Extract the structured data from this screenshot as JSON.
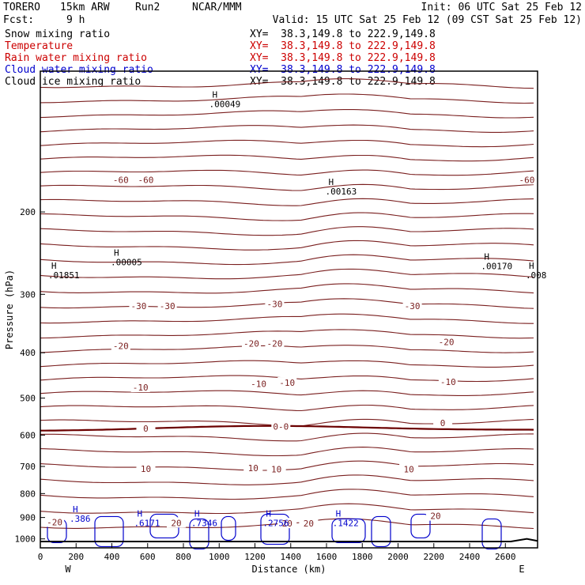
{
  "header": {
    "model": "TORERO",
    "resolution": "15km ARW",
    "run": "Run2",
    "org": "NCAR/MMM",
    "init": "Init: 06 UTC Sat 25 Feb 12",
    "fcst_label": "Fcst:",
    "fcst_value": "9 h",
    "valid": "Valid: 15 UTC Sat 25 Feb 12 (09 CST Sat 25 Feb 12)"
  },
  "fields": [
    {
      "name": "Snow mixing ratio",
      "xy": "XY=  38.3,149.8 to 222.9,149.8",
      "color": "#000000",
      "xy_color": "#000000"
    },
    {
      "name": "Temperature",
      "xy": "XY=  38.3,149.8 to 222.9,149.8",
      "color": "#cc0000",
      "xy_color": "#cc0000"
    },
    {
      "name": "Rain water mixing ratio",
      "xy": "XY=  38.3,149.8 to 222.9,149.8",
      "color": "#cc0000",
      "xy_color": "#cc0000"
    },
    {
      "name": "Cloud water mixing ratio",
      "xy": "XY=  38.3,149.8 to 222.9,149.8",
      "color": "#0000cc",
      "xy_color": "#0000cc"
    },
    {
      "name": "Cloud ice mixing ratio",
      "xy": "XY=  38.3,149.8 to 222.9,149.8",
      "color": "#000000",
      "xy_color": "#000000"
    }
  ],
  "chart_data": {
    "type": "contour cross-section",
    "xlabel": "Distance (km)",
    "ylabel": "Pressure (hPa)",
    "xlim": [
      0,
      2780
    ],
    "ylim": [
      1045,
      100
    ],
    "y_scale": "log",
    "xticks": [
      0,
      200,
      400,
      600,
      800,
      1000,
      1200,
      1400,
      1600,
      1800,
      2000,
      2200,
      2400,
      2600
    ],
    "yticks": [
      200,
      300,
      400,
      500,
      600,
      700,
      800,
      900,
      1000
    ],
    "end_labels": {
      "left": "W",
      "right": "E"
    },
    "temperature_labels": [
      {
        "text": "-60",
        "x": 450,
        "p": 172
      },
      {
        "text": "-60",
        "x": 590,
        "p": 172
      },
      {
        "text": "-60",
        "x": 2720,
        "p": 172
      },
      {
        "text": "-30",
        "x": 550,
        "p": 320
      },
      {
        "text": "-30",
        "x": 710,
        "p": 320
      },
      {
        "text": "-30",
        "x": 1310,
        "p": 317
      },
      {
        "text": "-30",
        "x": 2080,
        "p": 320
      },
      {
        "text": "-20",
        "x": 450,
        "p": 390
      },
      {
        "text": "-20",
        "x": 1180,
        "p": 385
      },
      {
        "text": "-20",
        "x": 1310,
        "p": 385
      },
      {
        "text": "-20",
        "x": 2270,
        "p": 382
      },
      {
        "text": "-10",
        "x": 560,
        "p": 478
      },
      {
        "text": "-10",
        "x": 1220,
        "p": 470
      },
      {
        "text": "-10",
        "x": 1380,
        "p": 467
      },
      {
        "text": "-10",
        "x": 2280,
        "p": 465
      },
      {
        "text": "0",
        "x": 590,
        "p": 585
      },
      {
        "text": "0-0",
        "x": 1345,
        "p": 580
      },
      {
        "text": "0",
        "x": 2250,
        "p": 570
      },
      {
        "text": "10",
        "x": 590,
        "p": 713
      },
      {
        "text": "10",
        "x": 1190,
        "p": 711
      },
      {
        "text": "10",
        "x": 1320,
        "p": 715
      },
      {
        "text": "10",
        "x": 2060,
        "p": 715
      },
      {
        "text": "-20",
        "x": 80,
        "p": 928
      },
      {
        "text": "20",
        "x": 760,
        "p": 931
      },
      {
        "text": "20",
        "x": 1380,
        "p": 934
      },
      {
        "text": "20",
        "x": 1500,
        "p": 934
      },
      {
        "text": "20",
        "x": 2210,
        "p": 900
      }
    ],
    "maxima": [
      {
        "label": "H",
        "value": ".00049",
        "x": 970,
        "p": 117,
        "color": "#000000"
      },
      {
        "label": "H",
        "value": ".00163",
        "x": 1620,
        "p": 180,
        "color": "#000000"
      },
      {
        "label": "H",
        "value": ".01851",
        "x": 70,
        "p": 272,
        "color": "#000000"
      },
      {
        "label": "H",
        "value": ".00005",
        "x": 420,
        "p": 255,
        "color": "#000000"
      },
      {
        "label": "H",
        "value": ".00170",
        "x": 2490,
        "p": 260,
        "color": "#000000"
      },
      {
        "label": "H",
        "value": ".008",
        "x": 2740,
        "p": 272,
        "color": "#000000"
      },
      {
        "label": "H",
        "value": ".386",
        "x": 190,
        "p": 902,
        "color": "#0000cc"
      },
      {
        "label": "H",
        "value": ".6171",
        "x": 550,
        "p": 920,
        "color": "#0000cc"
      },
      {
        "label": "H",
        "value": ".7346",
        "x": 870,
        "p": 920,
        "color": "#0000cc"
      },
      {
        "label": "H",
        "value": ".2756",
        "x": 1270,
        "p": 920,
        "color": "#0000cc"
      },
      {
        "label": "H",
        "value": ".1422",
        "x": 1660,
        "p": 920,
        "color": "#0000cc"
      }
    ]
  }
}
